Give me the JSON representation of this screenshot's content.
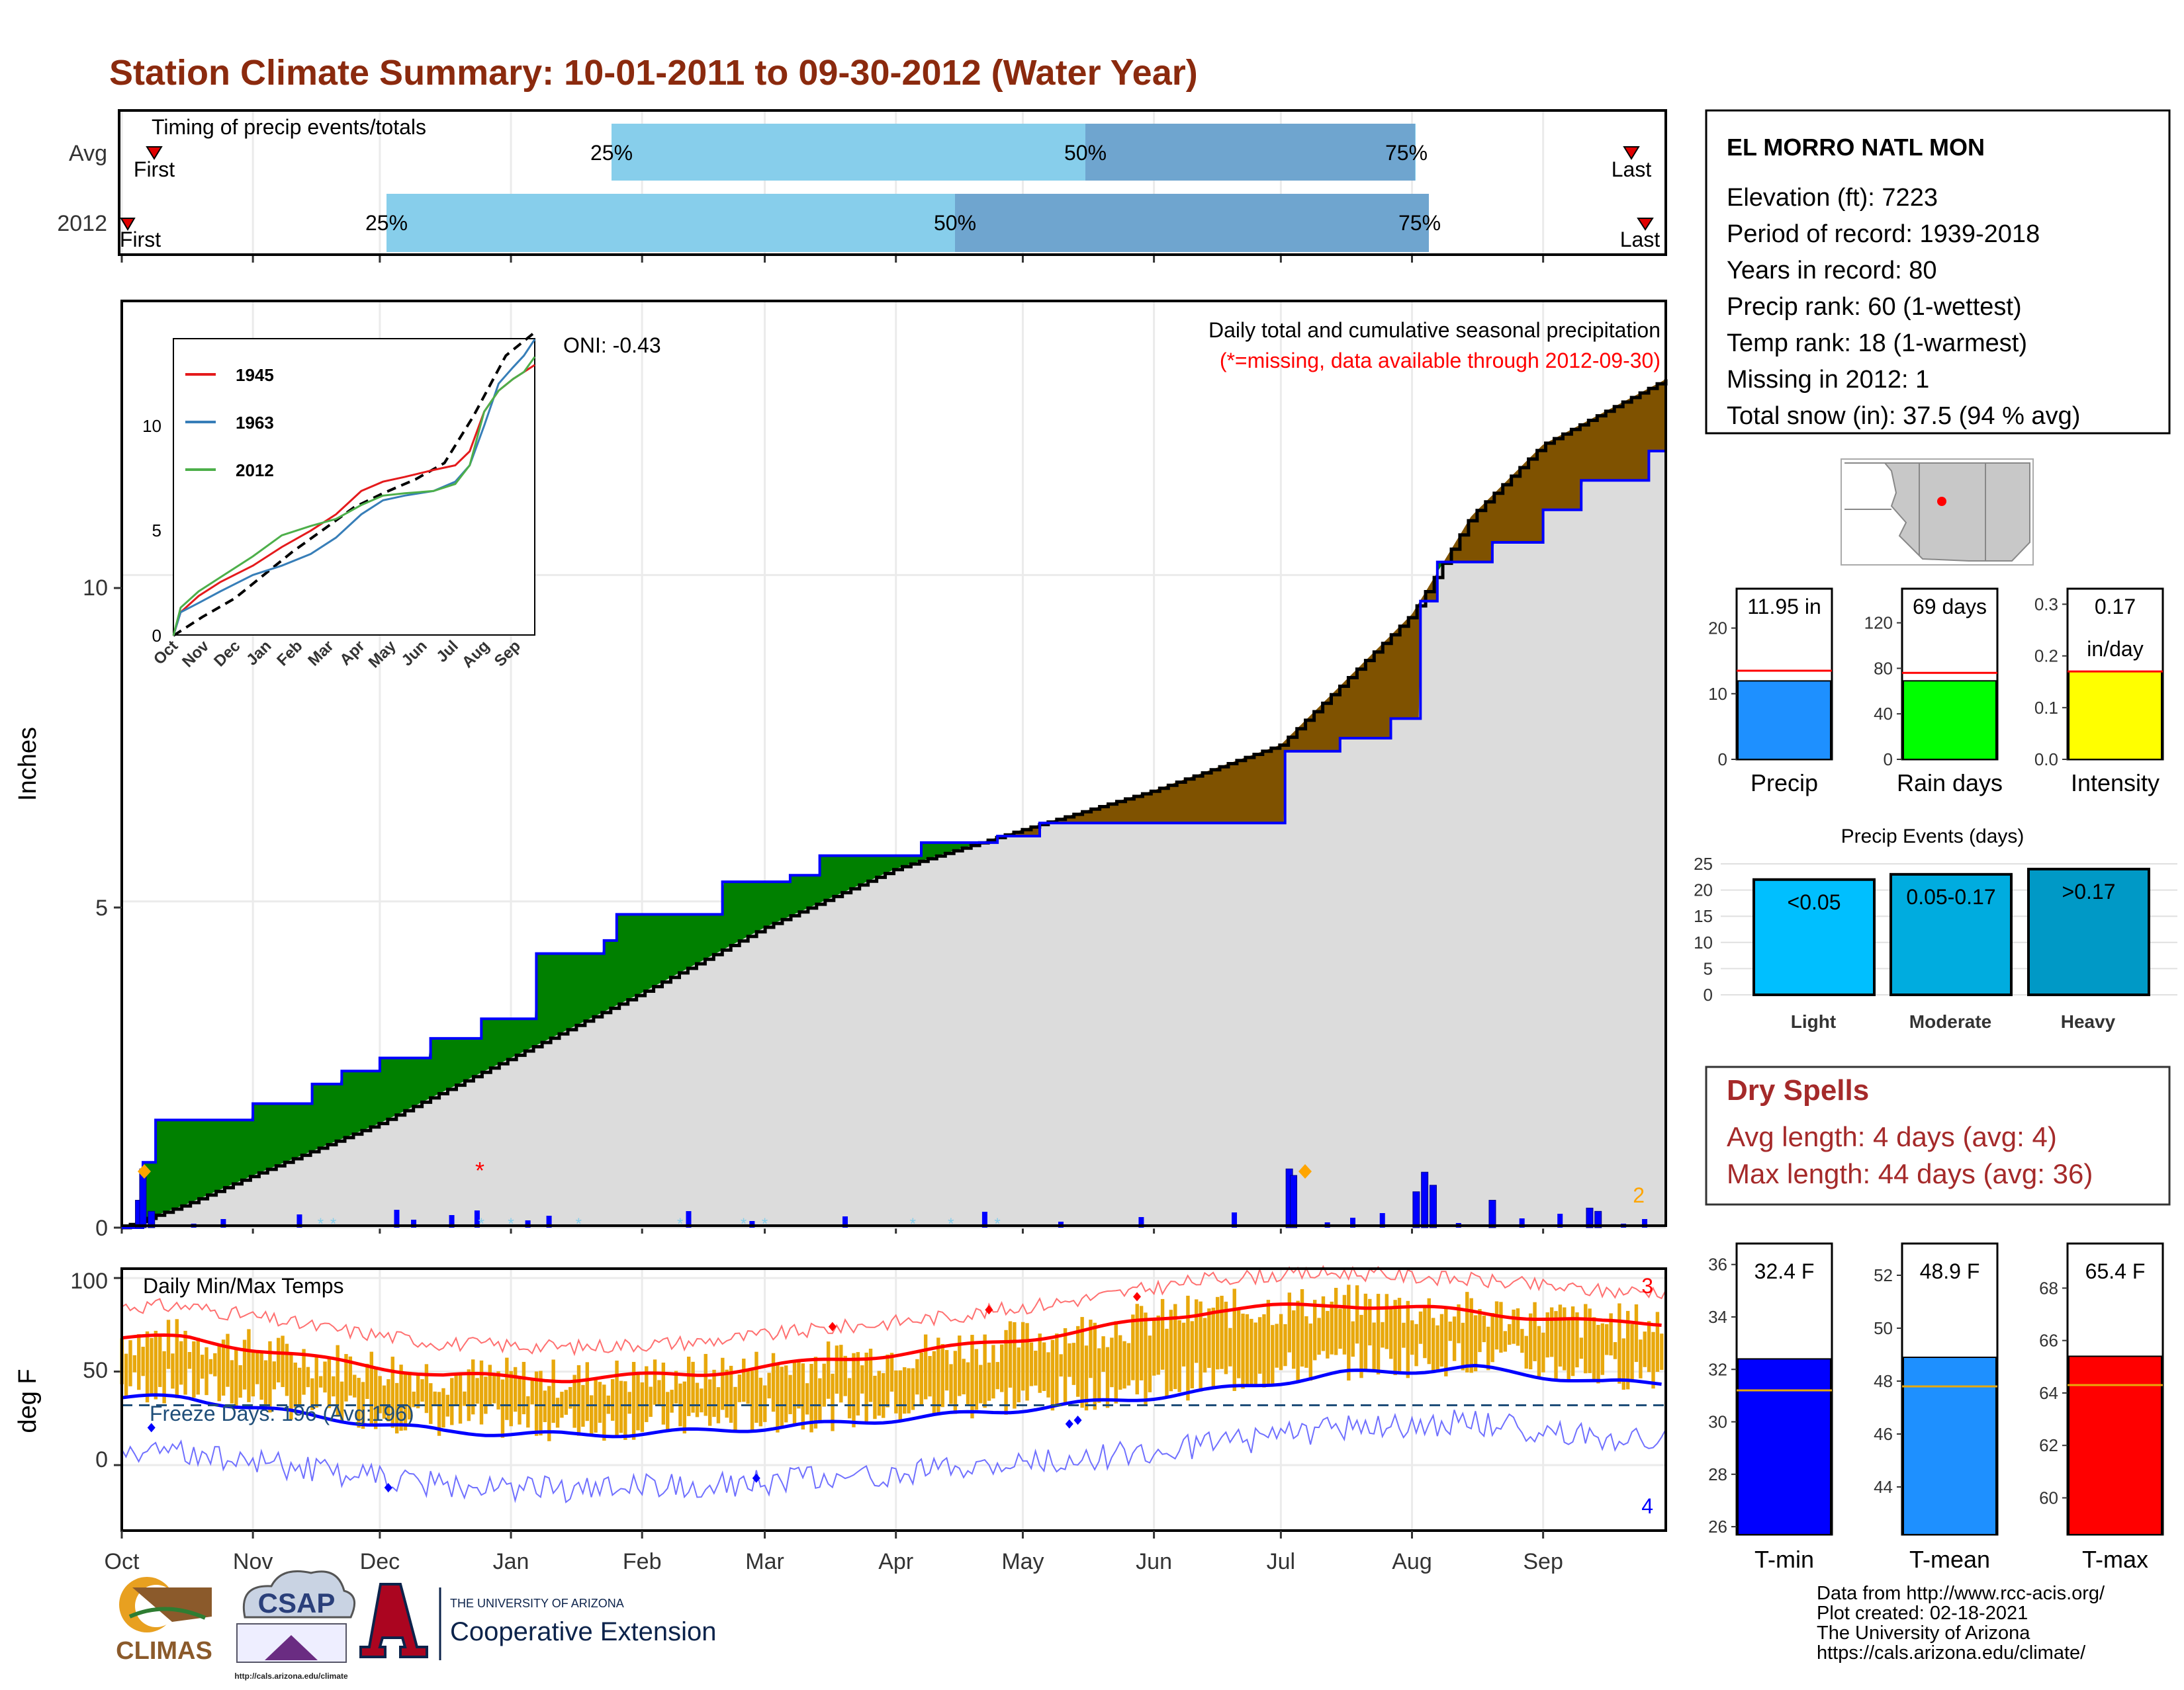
{
  "title": "Station Climate Summary: 10-01-2011 to 09-30-2012 (Water Year)",
  "colors": {
    "title": "#8b2a0e",
    "green": "#008000",
    "brown": "#7f5200",
    "blue_line": "#0000ff",
    "light_blue": "#87ceeb",
    "mid_blue": "#6fa5cf",
    "bar_orange": "#e8a80c",
    "tmax_red": "#ff0000",
    "tmin_blue": "#0000ff",
    "dry_red": "#a52a2a"
  },
  "timing": {
    "title": "Timing of precip events/totals",
    "rows": [
      {
        "label": "Avg",
        "first": "First",
        "last": "Last",
        "p25": "25%",
        "p50": "50%",
        "p75": "75%"
      },
      {
        "label": "2012",
        "first": "First",
        "last": "Last",
        "p25": "25%",
        "p50": "50%",
        "p75": "75%"
      }
    ]
  },
  "precip_panel": {
    "ylabel": "Inches",
    "yticks": [
      "0",
      "5",
      "10"
    ],
    "caption": "Daily total and cumulative seasonal precipitation",
    "note": "(*=missing, data available through 2012-09-30)",
    "oni": "ONI: -0.43",
    "corner_count": "2"
  },
  "inset": {
    "legend": [
      "1945",
      "1963",
      "2012"
    ],
    "yticks": [
      "0",
      "5",
      "10"
    ],
    "xticks": [
      "Oct",
      "Nov",
      "Dec",
      "Jan",
      "Feb",
      "Mar",
      "Apr",
      "May",
      "Jun",
      "Jul",
      "Aug",
      "Sep"
    ]
  },
  "temp_panel": {
    "ylabel": "deg F",
    "title": "Daily Min/Max Temps",
    "freeze": "Freeze Days: 196 (Avg:196)",
    "yticks": [
      "0",
      "50",
      "100"
    ],
    "count_top": "3",
    "count_bottom": "4"
  },
  "months": [
    "Oct",
    "Nov",
    "Dec",
    "Jan",
    "Feb",
    "Mar",
    "Apr",
    "May",
    "Jun",
    "Jul",
    "Aug",
    "Sep"
  ],
  "station": {
    "name": "EL MORRO NATL MON",
    "lines": [
      "Elevation (ft): 7223",
      "Period of record: 1939-2018",
      "Years in record: 80",
      "Precip rank: 60 (1-wettest)",
      "Temp rank: 18 (1-warmest)",
      "Missing in 2012: 1",
      "Total snow (in): 37.5 (94 % avg)"
    ]
  },
  "gauges": [
    {
      "label": "Precip",
      "value_label": "11.95 in",
      "value_label2": "",
      "ticks": [
        "0",
        "10",
        "20"
      ]
    },
    {
      "label": "Rain days",
      "value_label": "69 days",
      "value_label2": "",
      "ticks": [
        "0",
        "40",
        "80",
        "120"
      ]
    },
    {
      "label": "Intensity",
      "value_label": "0.17",
      "value_label2": "in/day",
      "ticks": [
        "0.0",
        "0.1",
        "0.2",
        "0.3"
      ]
    }
  ],
  "precip_events": {
    "title": "Precip Events (days)",
    "yticks": [
      "0",
      "5",
      "10",
      "15",
      "20",
      "25"
    ],
    "bars": [
      {
        "label": "Light",
        "value_label": "<0.05"
      },
      {
        "label": "Moderate",
        "value_label": "0.05-0.17"
      },
      {
        "label": "Heavy",
        "value_label": ">0.17"
      }
    ]
  },
  "dry_spells": {
    "title": "Dry Spells",
    "avg": "Avg length: 4 days (avg: 4)",
    "max": "Max length: 44 days (avg: 36)"
  },
  "temp_gauges": [
    {
      "label": "T-min",
      "value_label": "32.4 F",
      "ticks": [
        "26",
        "28",
        "30",
        "32",
        "34",
        "36"
      ]
    },
    {
      "label": "T-mean",
      "value_label": "48.9 F",
      "ticks": [
        "44",
        "46",
        "48",
        "50",
        "52"
      ]
    },
    {
      "label": "T-max",
      "value_label": "65.4 F",
      "ticks": [
        "60",
        "62",
        "64",
        "66",
        "68"
      ]
    }
  ],
  "credits": [
    "Data from http://www.rcc-acis.org/",
    "Plot created: 02-18-2021",
    "The University of Arizona",
    "https://cals.arizona.edu/climate/"
  ],
  "logos": {
    "climas": "CLIMAS",
    "csap": "CSAP",
    "csap_url": "http://cals.arizona.edu/climate",
    "ua_top": "THE UNIVERSITY OF ARIZONA",
    "ua_bottom": "Cooperative Extension"
  },
  "chart_data": [
    {
      "type": "area",
      "title": "Daily total and cumulative seasonal precipitation",
      "ylabel": "Inches",
      "ylim": [
        0,
        14.2
      ],
      "x_unit": "date",
      "xlim": [
        "2011-10-01",
        "2012-09-30"
      ],
      "series": [
        {
          "name": "cumulative_2012",
          "x": [
            "2011-10-01",
            "2011-10-06",
            "2011-10-09",
            "2011-11-01",
            "2011-11-15",
            "2011-11-22",
            "2011-12-01",
            "2011-12-13",
            "2011-12-25",
            "2012-01-07",
            "2012-01-23",
            "2012-01-26",
            "2012-02-20",
            "2012-03-07",
            "2012-03-14",
            "2012-04-07",
            "2012-04-25",
            "2012-05-05",
            "2012-06-01",
            "2012-07-01",
            "2012-07-02",
            "2012-07-15",
            "2012-07-27",
            "2012-08-03",
            "2012-08-07",
            "2012-08-20",
            "2012-09-01",
            "2012-09-10",
            "2012-09-26",
            "2012-09-30"
          ],
          "values": [
            0.0,
            1.0,
            1.65,
            1.9,
            2.2,
            2.4,
            2.6,
            2.9,
            3.2,
            4.2,
            4.4,
            4.8,
            5.3,
            5.4,
            5.7,
            5.9,
            6.0,
            6.2,
            6.2,
            6.2,
            7.3,
            7.5,
            7.8,
            9.6,
            10.2,
            10.5,
            11.0,
            11.45,
            11.9,
            11.95
          ]
        },
        {
          "name": "cumulative_avg",
          "x": [
            "2011-10-01",
            "2011-10-16",
            "2011-11-01",
            "2011-12-01",
            "2012-01-01",
            "2012-02-01",
            "2012-03-01",
            "2012-04-01",
            "2012-05-01",
            "2012-06-01",
            "2012-07-01",
            "2012-07-15",
            "2012-08-01",
            "2012-08-15",
            "2012-09-01",
            "2012-09-30"
          ],
          "values": [
            0.0,
            0.35,
            0.8,
            1.6,
            2.6,
            3.6,
            4.6,
            5.5,
            6.1,
            6.7,
            7.4,
            8.3,
            9.4,
            10.9,
            12.0,
            13.0
          ]
        },
        {
          "name": "daily_precip",
          "x": [
            "2011-10-05",
            "2011-10-06",
            "2011-10-08",
            "2012-07-03",
            "2012-07-04",
            "2012-08-02",
            "2012-08-04",
            "2012-08-06",
            "2012-08-20",
            "2012-09-12",
            "2012-09-14"
          ],
          "values": [
            0.42,
            0.9,
            0.25,
            0.9,
            0.8,
            0.55,
            0.85,
            0.65,
            0.42,
            0.3,
            0.25
          ]
        }
      ]
    },
    {
      "type": "line",
      "title": "Daily Min/Max Temps",
      "ylabel": "deg F",
      "ylim": [
        -35,
        105
      ],
      "series": [
        {
          "name": "normal_max",
          "x": [
            "Oct",
            "Nov",
            "Dec",
            "Jan",
            "Feb",
            "Mar",
            "Apr",
            "May",
            "Jun",
            "Jul",
            "Aug",
            "Sep"
          ],
          "values": [
            68,
            57,
            48,
            46,
            49,
            56,
            63,
            72,
            83,
            86,
            82,
            76
          ]
        },
        {
          "name": "normal_min",
          "x": [
            "Oct",
            "Nov",
            "Dec",
            "Jan",
            "Feb",
            "Mar",
            "Apr",
            "May",
            "Jun",
            "Jul",
            "Aug",
            "Sep"
          ],
          "values": [
            36,
            26,
            18,
            16,
            18,
            22,
            27,
            33,
            40,
            49,
            52,
            44
          ]
        },
        {
          "name": "freeze_line",
          "x": [
            "Oct",
            "Sep"
          ],
          "values": [
            32,
            32
          ]
        }
      ]
    },
    {
      "type": "bar",
      "title": "Precip Events (days)",
      "categories": [
        "Light",
        "Moderate",
        "Heavy"
      ],
      "values": [
        22,
        23,
        24
      ],
      "ylim": [
        0,
        25
      ]
    },
    {
      "type": "bar",
      "categories": [
        "Precip",
        "Rain days",
        "Intensity"
      ],
      "values": [
        11.95,
        69,
        0.17
      ],
      "averages": [
        13.5,
        76,
        0.17
      ]
    },
    {
      "type": "bar",
      "categories": [
        "T-min",
        "T-mean",
        "T-max"
      ],
      "values": [
        32.4,
        48.9,
        65.4
      ],
      "averages": [
        31.2,
        47.8,
        64.3
      ]
    },
    {
      "type": "bar",
      "title": "Timing of precip events/totals",
      "categories": [
        "Avg",
        "2012"
      ],
      "series": [
        {
          "name": "p25",
          "values": [
            "2012-01-22",
            "2011-12-25"
          ]
        },
        {
          "name": "p50",
          "values": [
            "2012-04-27",
            "2012-03-28"
          ]
        },
        {
          "name": "p75",
          "values": [
            "2012-07-31",
            "2012-08-03"
          ]
        }
      ]
    }
  ]
}
